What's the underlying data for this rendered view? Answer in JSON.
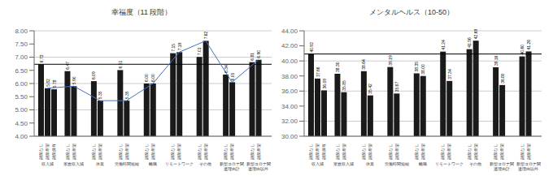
{
  "chart_data": [
    {
      "type": "bar",
      "title": "幸福度（11 段階）",
      "categories": [
        "収入減",
        "家族収入減",
        "休業",
        "労働時間短縮",
        "離職",
        "リモートワーク",
        "その他",
        "新型コロナ関\n連理由計",
        "新型コロナ関\n連理由以外"
      ],
      "series": [
        {
          "name": "副業なし",
          "values": [
            6.73,
            6.47,
            6.09,
            6.51,
            6.0,
            7.15,
            7.01,
            6.34,
            6.81
          ],
          "value_labels": [
            "6.73",
            "6.47",
            "6.09",
            "6.51",
            "6.00",
            "7.15",
            "7.01",
            "6.34",
            "6.81"
          ]
        },
        {
          "name": "副業希望",
          "values": [
            5.82,
            5.9,
            5.35,
            5.35,
            6.0,
            7.19,
            7.62,
            6.05,
            6.9
          ],
          "value_labels": [
            "5.82",
            "5.90",
            "5.35",
            "5.35",
            "6.00",
            "7.19",
            "7.62",
            "6.05",
            "6.90"
          ]
        },
        {
          "name": "副業保有",
          "values": [
            5.78,
            null,
            null,
            null,
            null,
            null,
            null,
            null,
            null
          ],
          "value_labels": [
            "5.78",
            null,
            null,
            null,
            null,
            null,
            null,
            null,
            null
          ]
        },
        {
          "type": "line",
          "color": "#4472c4",
          "values": [
            5.82,
            5.9,
            5.35,
            5.35,
            6.0,
            7.19,
            7.62,
            6.05,
            6.9
          ]
        }
      ],
      "color": "#1a1a1a",
      "reference_line": {
        "y": 6.73,
        "color": "#000000"
      },
      "ylim": [
        4.0,
        8.0
      ],
      "yticks": [
        {
          "value": 4,
          "label": "4.00"
        },
        {
          "value": 4.5,
          "label": "4.50"
        },
        {
          "value": 5,
          "label": "5.00"
        },
        {
          "value": 5.5,
          "label": "5.50"
        },
        {
          "value": 6,
          "label": "6.00"
        },
        {
          "value": 6.5,
          "label": "6.50"
        },
        {
          "value": 7,
          "label": "7.00"
        },
        {
          "value": 7.5,
          "label": "7.50"
        },
        {
          "value": 8,
          "label": "8.00"
        }
      ],
      "grid": true,
      "data_labels": true
    },
    {
      "type": "bar",
      "title": "メンタルヘルス（10-50）",
      "categories": [
        "収入減",
        "家族収入減",
        "休業",
        "労働時間短縮",
        "離職",
        "リモートワーク",
        "その他",
        "新型コロナ関\n連理由計",
        "新型コロナ関\n連理由以外"
      ],
      "series": [
        {
          "name": "副業なし",
          "values": [
            40.92,
            38.3,
            38.64,
            39.19,
            38.35,
            41.24,
            41.56,
            39.16,
            40.6
          ],
          "value_labels": [
            "40.92",
            "38.30",
            "38.64",
            "39.19",
            "38.35",
            "41.24",
            "41.56",
            "39.16",
            "40.60"
          ]
        },
        {
          "name": "副業希望",
          "values": [
            37.66,
            35.85,
            35.42,
            35.67,
            38.0,
            37.34,
            42.69,
            36.8,
            41.26
          ],
          "value_labels": [
            "37.66",
            "35.85",
            "35.42",
            "35.67",
            "38.00",
            "37.34",
            "42.69",
            "36.80",
            "41.26"
          ]
        },
        {
          "name": "副業保有",
          "values": [
            36.09,
            null,
            null,
            null,
            null,
            null,
            null,
            null,
            null
          ],
          "value_labels": [
            "36.09",
            null,
            null,
            null,
            null,
            null,
            null,
            null,
            null
          ]
        }
      ],
      "color": "#1a1a1a",
      "reference_line": {
        "y": 40.92,
        "color": "#000000"
      },
      "ylim": [
        30.0,
        44.0
      ],
      "yticks": [
        {
          "value": 30,
          "label": "30.00"
        },
        {
          "value": 32,
          "label": "32.00"
        },
        {
          "value": 34,
          "label": "34.00"
        },
        {
          "value": 36,
          "label": "36.00"
        },
        {
          "value": 38,
          "label": "38.00"
        },
        {
          "value": 40,
          "label": "40.00"
        },
        {
          "value": 42,
          "label": "42.00"
        },
        {
          "value": 44,
          "label": "44.00"
        }
      ],
      "grid": true,
      "data_labels": true
    }
  ]
}
